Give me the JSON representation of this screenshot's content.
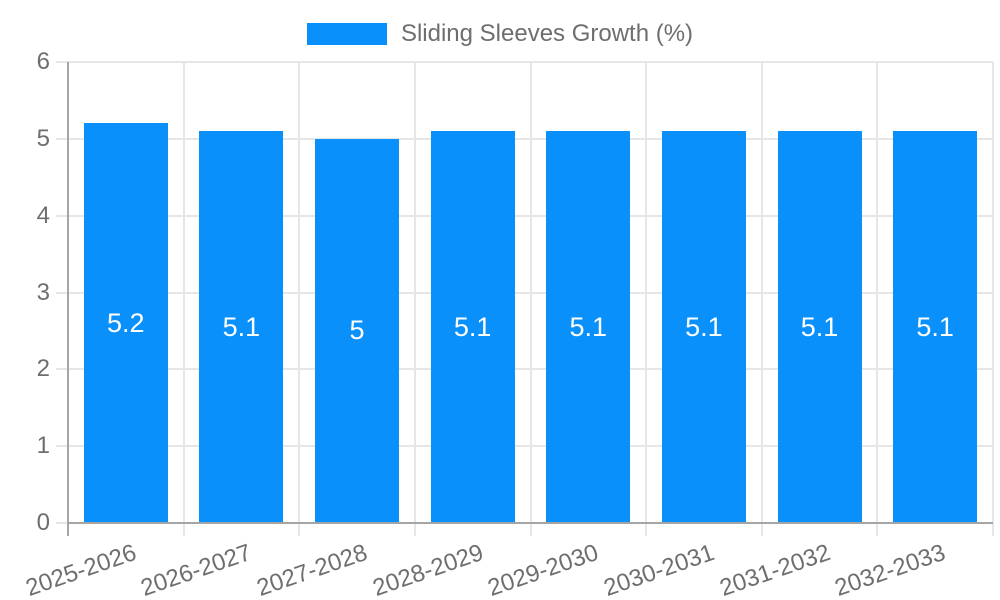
{
  "legend": {
    "label": "Sliding Sleeves Growth (%)",
    "swatch_color": "#0990FB"
  },
  "chart_data": {
    "type": "bar",
    "title": "Sliding Sleeves Growth (%)",
    "xlabel": "",
    "ylabel": "",
    "categories": [
      "2025-2026",
      "2026-2027",
      "2027-2028",
      "2028-2029",
      "2029-2030",
      "2030-2031",
      "2031-2032",
      "2032-2033"
    ],
    "series": [
      {
        "name": "Sliding Sleeves Growth (%)",
        "values": [
          5.2,
          5.1,
          5,
          5.1,
          5.1,
          5.1,
          5.1,
          5.1
        ],
        "value_labels": [
          "5.2",
          "5.1",
          "5",
          "5.1",
          "5.1",
          "5.1",
          "5.1",
          "5.1"
        ]
      }
    ],
    "ylim": [
      0,
      6
    ],
    "yticks": [
      "0",
      "1",
      "2",
      "3",
      "4",
      "5",
      "6"
    ],
    "grid": true,
    "legend_position": "top",
    "colors": {
      "bar": "#0990FB",
      "grid": "#E6E6E6",
      "axis": "#A5A5A5",
      "text": "#6E6E6E",
      "value_label": "#FFFFFF"
    }
  }
}
